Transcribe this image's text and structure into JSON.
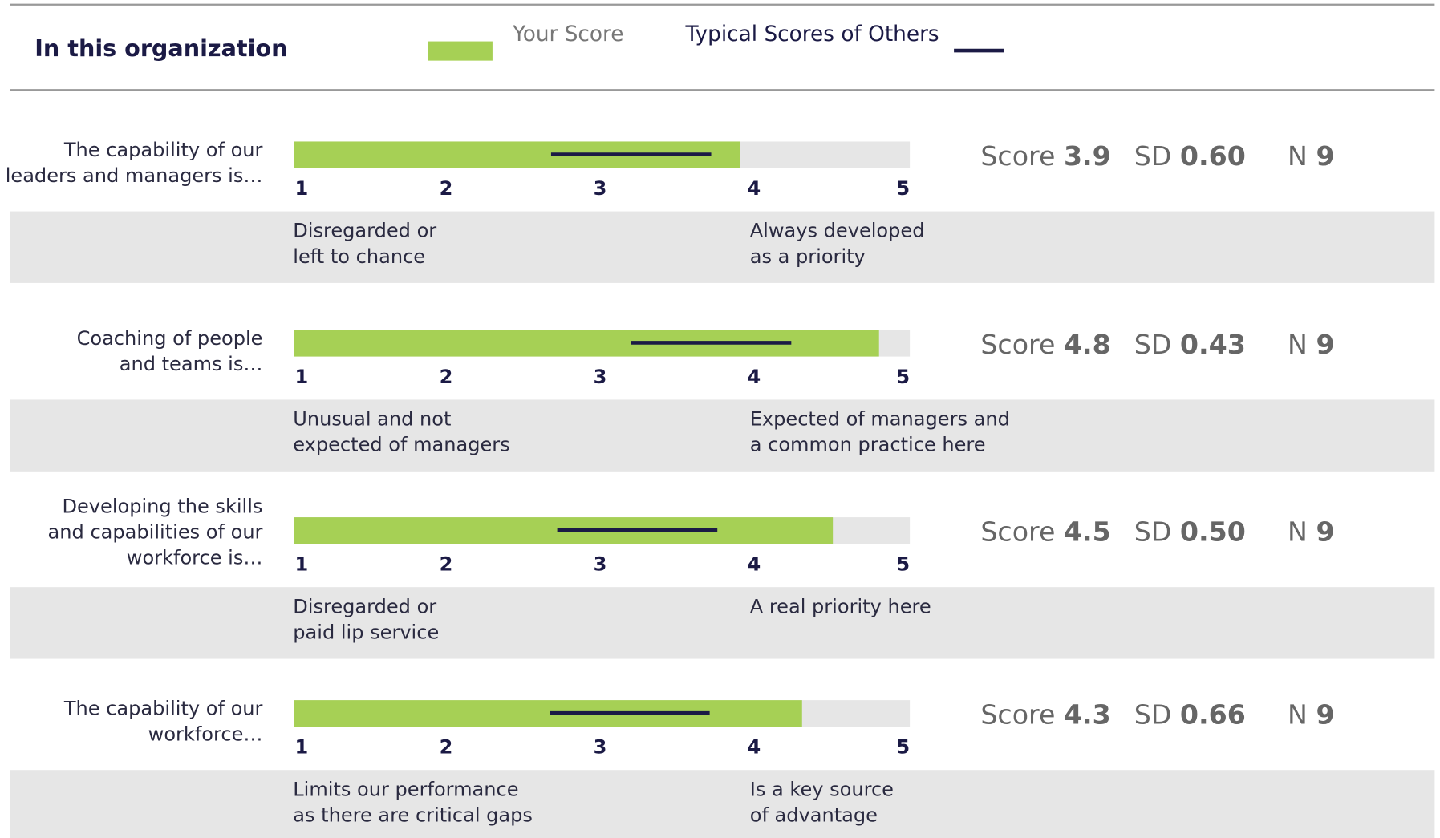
{
  "header": {
    "title": "In this organization",
    "legend": [
      {
        "name": "Your Score",
        "color": "#a6d055"
      },
      {
        "name": "Typical Scores of Others",
        "color": "#1b1a45"
      }
    ]
  },
  "xlim": [
    1,
    5
  ],
  "xticks": [
    1,
    2,
    3,
    4,
    5
  ],
  "stat_labels": [
    "Score",
    "SD",
    "N"
  ],
  "items": [
    {
      "label": [
        "The capability of our",
        "leaders and managers is…"
      ],
      "score": 3.9,
      "sd": {
        "value": 0.6,
        "label": "0.60"
      },
      "n": 9,
      "others": [
        2.67,
        3.71
      ],
      "low": [
        "Disregarded or",
        "left to chance"
      ],
      "high": [
        "Always developed",
        "as a priority"
      ]
    },
    {
      "label": [
        "Coaching of people",
        "and teams is…"
      ],
      "score": 4.8,
      "sd": 0.43,
      "n": 9,
      "others": [
        3.19,
        4.23
      ],
      "low": [
        "Unusual and not",
        "expected of managers"
      ],
      "high": [
        "Expected of managers and",
        "a common practice here"
      ]
    },
    {
      "label": [
        "Developing the skills",
        "and capabilities of our",
        "workforce is…"
      ],
      "score": 4.5,
      "sd": {
        "value": 0.5,
        "label": "0.50"
      },
      "n": 9,
      "others": [
        2.71,
        3.75
      ],
      "low": [
        "Disregarded or",
        "paid lip service"
      ],
      "high": [
        "A real priority here"
      ]
    },
    {
      "label": [
        "The capability of our",
        "workforce…"
      ],
      "score": 4.3,
      "sd": 0.66,
      "n": 9,
      "others": [
        2.66,
        3.7
      ],
      "low": [
        "Limits our performance",
        "as there are critical gaps"
      ],
      "high": [
        "Is a key source",
        "of advantage"
      ]
    }
  ]
}
